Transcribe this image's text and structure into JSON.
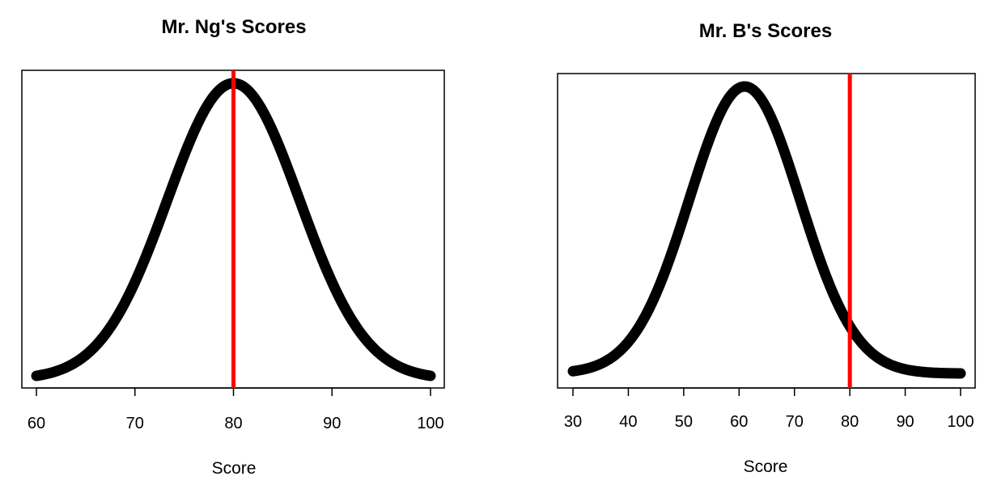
{
  "chart_data": [
    {
      "type": "line",
      "title": "Mr. Ng's Scores",
      "xlabel": "Score",
      "ylabel": "",
      "xlim": [
        60,
        100
      ],
      "xticks": [
        60,
        70,
        80,
        90,
        100
      ],
      "distribution": "normal",
      "mean": 80,
      "sd": 6.7,
      "vline": 80,
      "series": [
        {
          "color": "#000000",
          "x_start": 60,
          "x_end": 100
        }
      ],
      "vline_color": "#ff0000",
      "grid": false,
      "legend": "none"
    },
    {
      "type": "line",
      "title": "Mr. B's Scores",
      "xlabel": "Score",
      "ylabel": "",
      "xlim": [
        30,
        100
      ],
      "xticks": [
        30,
        40,
        50,
        60,
        70,
        80,
        90,
        100
      ],
      "distribution": "normal",
      "mean": 61,
      "sd": 10,
      "vline": 80,
      "series": [
        {
          "color": "#000000",
          "x_start": 30,
          "x_end": 100
        }
      ],
      "vline_color": "#ff0000",
      "grid": false,
      "legend": "none"
    }
  ]
}
